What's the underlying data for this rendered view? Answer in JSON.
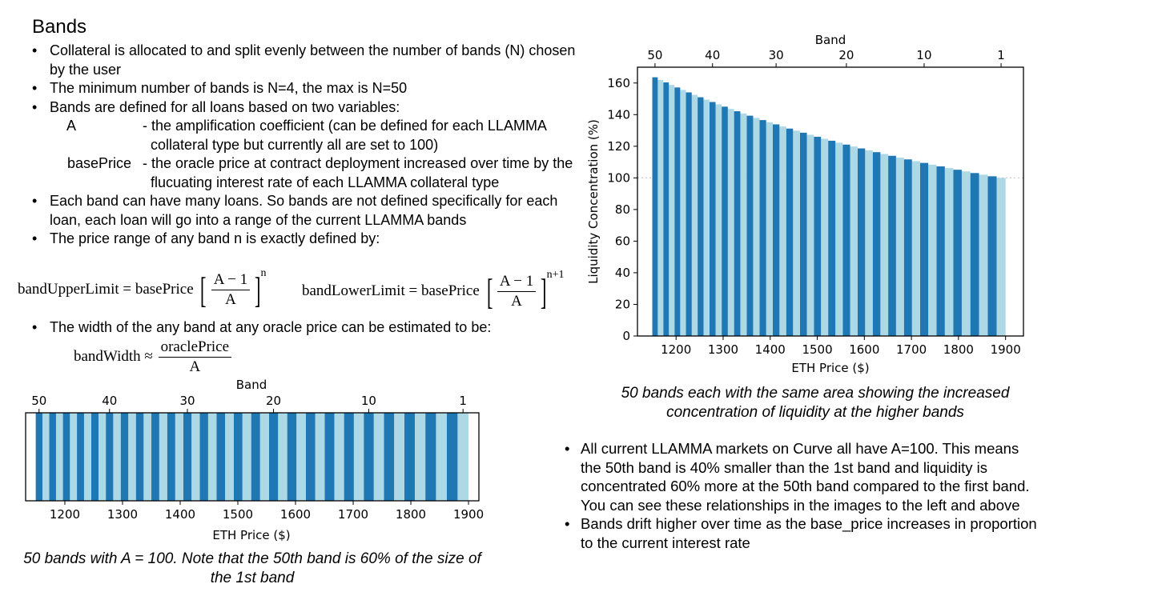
{
  "page": {
    "title": "Bands",
    "bullets": [
      "Collateral is allocated to and split evenly between the number of bands (N) chosen by the user",
      "The minimum number of bands is N=4, the max is N=50",
      "Bands are defined for all loans based on two variables:"
    ],
    "sub_items": [
      {
        "key": "A",
        "desc": "- the amplification coefficient (can be defined for each LLAMMA collateral type but currently all are set to 100)"
      },
      {
        "key": "basePrice",
        "desc": "- the oracle price at contract deployment increased over time by the flucuating interest rate of each LLAMMA collateral type"
      }
    ],
    "bullets2": [
      "Each band can have many loans.  So bands are not defined specifically for each loan, each loan will go into a range of the current LLAMMA bands",
      "The price range of any band n is exactly defined by:"
    ],
    "formula_upper": {
      "lhs": "bandUpperLimit = basePrice",
      "num": "A − 1",
      "den": "A",
      "exp": "n"
    },
    "formula_lower": {
      "lhs": "bandLowerLimit = basePrice",
      "num": "A − 1",
      "den": "A",
      "exp": "n+1"
    },
    "bullet_width": "The width of the any band at any oracle price can be estimated to be:",
    "formula_width": {
      "lhs": "bandWidth ≈",
      "num": "oraclePrice",
      "den": "A"
    },
    "caption_left": "50 bands with A = 100.  Note that the 50th band is 60% of the size of the 1st band",
    "caption_right": "50 bands each with the same area showing the increased concentration of liquidity at the higher bands",
    "right_bullets": [
      "All current LLAMMA markets on Curve all have A=100.  This means the 50th band is 40% smaller than the 1st band and liquidity is concentrated 60% more at the 50th band compared to the first band.  You can see these relationships in the images to the left and above",
      "Bands drift higher over time as the base_price increases in proportion to the current interest rate"
    ]
  },
  "colors": {
    "dark": "#1f77b4",
    "light": "#add8e6",
    "ref_line": "#d3d3d3"
  },
  "chart_data": [
    {
      "type": "bar",
      "xlabel": "ETH Price ($)",
      "top_xlabel": "Band",
      "xticks": [
        1200,
        1300,
        1400,
        1500,
        1600,
        1700,
        1800,
        1900
      ],
      "top_ticks": [
        50,
        40,
        30,
        20,
        10,
        1
      ],
      "xlim": [
        1132,
        1918
      ],
      "base_price": 1900,
      "A": 100,
      "n_bands": 50,
      "bands": "alternating dark/light, 50 bands from 1150 to 1900",
      "yticks_shown": false
    },
    {
      "type": "bar",
      "xlabel": "ETH Price ($)",
      "ylabel": "Liquidity Concentration (%)",
      "top_xlabel": "Band",
      "xticks": [
        1200,
        1300,
        1400,
        1500,
        1600,
        1700,
        1800,
        1900
      ],
      "yticks": [
        0,
        20,
        40,
        60,
        80,
        100,
        120,
        140,
        160
      ],
      "top_ticks": [
        50,
        40,
        30,
        20,
        10,
        1
      ],
      "xlim": [
        1118,
        1938
      ],
      "ylim": [
        0,
        170
      ],
      "reference_line": 100,
      "base_price": 1900,
      "A": 100,
      "n_bands": 50,
      "values_range": [
        100,
        164
      ]
    }
  ]
}
